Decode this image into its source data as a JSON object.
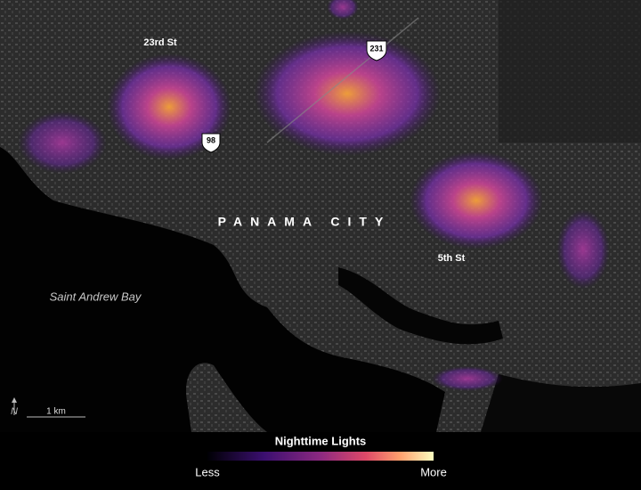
{
  "map": {
    "street_labels": [
      "23rd St",
      "5th St"
    ],
    "highway_shields": [
      "231",
      "98"
    ],
    "city_label": "PANAMA CITY",
    "water_label": "Saint Andrew Bay",
    "north_label": "N",
    "scale_label": "1 km"
  },
  "legend": {
    "title": "Nighttime Lights",
    "low_label": "Less",
    "high_label": "More"
  }
}
